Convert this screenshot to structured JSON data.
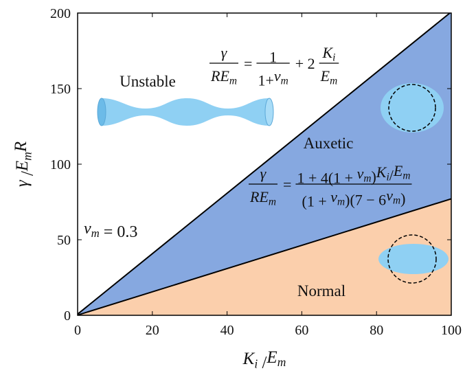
{
  "chart_data": {
    "type": "area",
    "x": [
      0,
      100
    ],
    "series": [
      {
        "values": [
          0.77,
          200.77
        ],
        "color": "#000000",
        "fill": "#86a8e0"
      },
      {
        "values": [
          0.15,
          77.07
        ],
        "color": "#000000",
        "fill": "#fbcfac"
      }
    ],
    "xlim": [
      0,
      100
    ],
    "ylim": [
      0,
      200
    ],
    "xticks": [
      0,
      20,
      40,
      60,
      80,
      100
    ],
    "yticks": [
      0,
      50,
      100,
      150,
      200
    ],
    "xlabel": [
      {
        "it": "K"
      },
      {
        "sub": "i"
      },
      " /",
      {
        "it": "E"
      },
      {
        "sub": "m"
      }
    ],
    "ylabel": [
      {
        "it": "γ"
      },
      " /",
      {
        "it": "E"
      },
      {
        "sub": "m"
      },
      {
        "it": "R"
      }
    ],
    "region_labels": [
      "Unstable",
      "Auxetic",
      "Normal"
    ],
    "annotation": [
      {
        "it": "ν"
      },
      {
        "sub": "m"
      },
      " = 0.3"
    ],
    "equations": [
      [
        {
          "num": [
            {
              "it": "γ"
            }
          ],
          "den": [
            {
              "it": "RE"
            },
            {
              "sub": "m"
            }
          ]
        },
        "=",
        {
          "num": [
            "1"
          ],
          "den": [
            "1+",
            {
              "it": "ν"
            },
            {
              "sub": "m"
            }
          ]
        },
        "+ 2",
        {
          "num": [
            {
              "it": "K"
            },
            {
              "sub": "i"
            }
          ],
          "den": [
            {
              "it": "E"
            },
            {
              "sub": "m"
            }
          ]
        }
      ],
      [
        {
          "num": [
            {
              "it": "γ"
            }
          ],
          "den": [
            {
              "it": "RE"
            },
            {
              "sub": "m"
            }
          ]
        },
        "=",
        {
          "num": [
            "1 + 4(1 + ",
            {
              "it": "ν"
            },
            {
              "sub": "m"
            },
            ")",
            {
              "it": "K"
            },
            {
              "sub": "i"
            },
            "/",
            {
              "it": "E"
            },
            {
              "sub": "m"
            }
          ],
          "den": [
            "(1 + ",
            {
              "it": "ν"
            },
            {
              "sub": "m"
            },
            ")(7 − 6",
            {
              "it": "ν"
            },
            {
              "sub": "m"
            },
            ")"
          ]
        }
      ]
    ]
  }
}
